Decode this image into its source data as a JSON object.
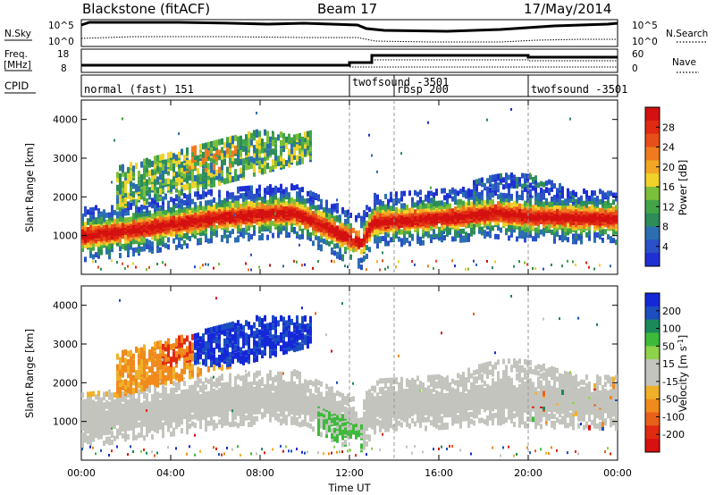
{
  "header": {
    "radar": "Blackstone (fitACF)",
    "beam": "Beam 17",
    "date": "17/May/2014"
  },
  "top_panels": {
    "nsky_label": "N.Sky",
    "nsearch_label": "N.Search",
    "noise_ticks_left": [
      "10^5",
      "10^0"
    ],
    "noise_ticks_right": [
      "10^5",
      "10^0"
    ],
    "freq_label": "Freq.",
    "freq_unit": "[MHz]",
    "freq_ticks": [
      "18",
      "8"
    ],
    "nave_label": "Nave",
    "nave_ticks": [
      "60",
      "0"
    ],
    "cpid_label": "CPID"
  },
  "modes": [
    {
      "label": "normal (fast) 151",
      "start_hr": 0
    },
    {
      "label": "twofsound -3501",
      "start_hr": 12.0
    },
    {
      "label": "rbsp 200",
      "start_hr": 14.0
    },
    {
      "label": "twofsound -3501",
      "start_hr": 20.0
    }
  ],
  "colors": {
    "power_scale": [
      "#1f2fd6",
      "#2a50c8",
      "#2b6fb0",
      "#2d8c5a",
      "#43a548",
      "#7cbf3a",
      "#f0d22a",
      "#f2a624",
      "#f07a1e",
      "#e84e1a",
      "#e02a12",
      "#d41010"
    ],
    "velocity_scale": [
      "#1528d8",
      "#1c4ec0",
      "#1a8a5a",
      "#3dba3a",
      "#8ed24a",
      "#c4c4be",
      "#c4c4be",
      "#f0b02a",
      "#f08a1c",
      "#e8601a",
      "#e02a12",
      "#d81010"
    ]
  },
  "chart_data": [
    {
      "type": "heatmap",
      "panel": "power",
      "ylabel": "Slant Range [km]",
      "xlabel": "Time UT",
      "x_ticks": [
        "00:00",
        "04:00",
        "08:00",
        "12:00",
        "16:00",
        "20:00",
        "00:00"
      ],
      "xlim_hours": [
        0,
        24
      ],
      "ylim_km": [
        0,
        4500
      ],
      "y_ticks": [
        "1000",
        "2000",
        "3000",
        "4000"
      ],
      "colorbar_label": "Power [dB]",
      "colorbar_ticks": [
        "4",
        "8",
        "12",
        "16",
        "20",
        "24",
        "28"
      ],
      "colorbar_range": [
        0,
        30
      ],
      "main_echo_band_km": [
        [
          0,
          1050
        ],
        [
          2,
          1180
        ],
        [
          4,
          1350
        ],
        [
          6,
          1520
        ],
        [
          8,
          1620
        ],
        [
          9.5,
          1650
        ],
        [
          11,
          1250
        ],
        [
          12.5,
          850
        ],
        [
          13,
          1400
        ],
        [
          15,
          1480
        ],
        [
          17,
          1560
        ],
        [
          18.5,
          1650
        ],
        [
          20,
          1550
        ],
        [
          22,
          1520
        ],
        [
          24,
          1500
        ]
      ]
    },
    {
      "type": "heatmap",
      "panel": "velocity",
      "ylabel": "Slant Range [km]",
      "xlabel": "Time UT",
      "x_ticks": [
        "00:00",
        "04:00",
        "08:00",
        "12:00",
        "16:00",
        "20:00",
        "00:00"
      ],
      "xlim_hours": [
        0,
        24
      ],
      "ylim_km": [
        0,
        4500
      ],
      "y_ticks": [
        "1000",
        "2000",
        "3000",
        "4000"
      ],
      "colorbar_label": "Velocity [m s^-1]",
      "colorbar_ticks": [
        "200",
        "100",
        "50",
        "15",
        "-15",
        "-50",
        "-100",
        "-200"
      ],
      "colorbar_range": [
        -250,
        250
      ]
    }
  ]
}
